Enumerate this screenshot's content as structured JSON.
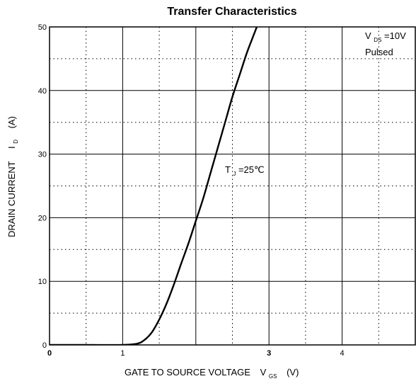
{
  "chart_data": {
    "type": "line",
    "title": "Transfer Characteristics",
    "xlabel": "GATE TO SOURCE VOLTAGE",
    "xlabel_symbol": "V",
    "xlabel_subscript": "GS",
    "xlabel_unit": "(V)",
    "ylabel": "DRAIN CURRENT",
    "ylabel_symbol": "I",
    "ylabel_subscript": "D",
    "ylabel_unit": "(A)",
    "xlim": [
      0,
      5
    ],
    "ylim": [
      0,
      50
    ],
    "x_ticks": [
      {
        "value": 0,
        "label": "0",
        "bold": true
      },
      {
        "value": 1,
        "label": "1",
        "bold": false
      },
      {
        "value": 3,
        "label": "3",
        "bold": true
      },
      {
        "value": 4,
        "label": "4",
        "bold": false
      }
    ],
    "y_ticks": [
      {
        "value": 0,
        "label": "0"
      },
      {
        "value": 10,
        "label": "10"
      },
      {
        "value": 20,
        "label": "20"
      },
      {
        "value": 30,
        "label": "30"
      },
      {
        "value": 40,
        "label": "40"
      },
      {
        "value": 50,
        "label": "50"
      }
    ],
    "major_grid_x": [
      1,
      2,
      3,
      4
    ],
    "minor_grid_x": [
      0.5,
      1.5,
      2.5,
      3.5,
      4.5
    ],
    "major_grid_y": [
      10,
      20,
      30,
      40
    ],
    "minor_grid_y": [
      5,
      15,
      25,
      35,
      45
    ],
    "grid": true,
    "annotations": {
      "condition_symbol": "V",
      "condition_subscript": "DS",
      "condition_value": "=10V",
      "pulsed": "Pulsed",
      "temp_symbol": "T",
      "temp_subscript": "J",
      "temp_value": "=25℃"
    },
    "series": [
      {
        "x": [
          0,
          0.5,
          1.0,
          1.2,
          1.3,
          1.4,
          1.5,
          1.6,
          1.7,
          1.8,
          1.9,
          2.0,
          2.1,
          2.2,
          2.3,
          2.4,
          2.5,
          2.6,
          2.7,
          2.8,
          2.85
        ],
        "y": [
          0,
          0,
          0,
          0.2,
          0.8,
          2.0,
          4.0,
          6.5,
          9.5,
          12.8,
          16.0,
          19.5,
          23.0,
          27.0,
          31.0,
          35.0,
          39.0,
          42.5,
          46.0,
          49.0,
          50.5
        ]
      }
    ]
  }
}
